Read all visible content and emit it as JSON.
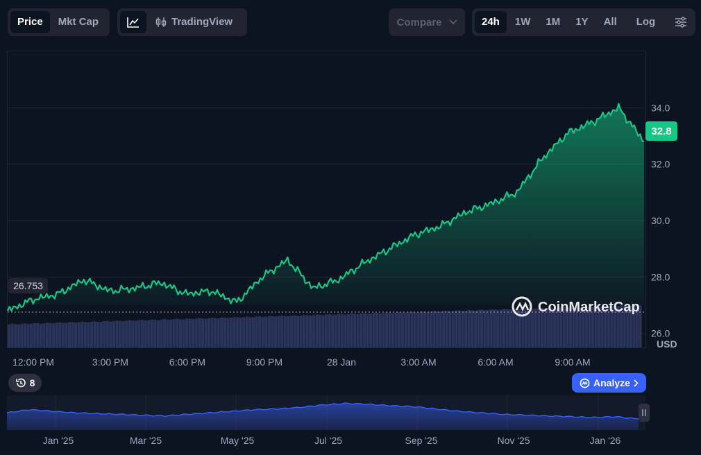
{
  "toolbar": {
    "metric_tabs": [
      "Price",
      "Mkt Cap"
    ],
    "metric_active": "Price",
    "tradingview_label": "TradingView",
    "compare_label": "Compare",
    "ranges": [
      "24h",
      "1W",
      "1M",
      "1Y",
      "All"
    ],
    "range_active": "24h",
    "log_label": "Log"
  },
  "chart_data": {
    "type": "area",
    "y_unit": "USD",
    "ylim": [
      25.5,
      36.0
    ],
    "y_ticks": [
      34.0,
      32.0,
      30.0,
      28.0,
      26.0
    ],
    "x_ticks": [
      "12:00 PM",
      "3:00 PM",
      "6:00 PM",
      "9:00 PM",
      "28 Jan",
      "3:00 AM",
      "6:00 AM",
      "9:00 AM"
    ],
    "open_price_label": "26.753",
    "open_price": 26.753,
    "current_price_label": "32.8",
    "current_price": 32.8,
    "series": [
      {
        "x": [
          0,
          1,
          2,
          3,
          4,
          5,
          6,
          7,
          8,
          9,
          10,
          11,
          12,
          13,
          14,
          15,
          16,
          17,
          18,
          19,
          20,
          21,
          22,
          23,
          24,
          25
        ],
        "values": [
          26.8,
          27.2,
          27.4,
          27.9,
          27.5,
          27.6,
          27.8,
          27.4,
          27.5,
          27.1,
          28.0,
          28.6,
          27.6,
          27.9,
          28.5,
          29.0,
          29.5,
          29.8,
          30.3,
          30.6,
          31.0,
          32.2,
          33.1,
          33.5,
          34.0,
          32.8
        ]
      }
    ],
    "volume_bars_relative": [
      0.62,
      0.64,
      0.66,
      0.68,
      0.7,
      0.72,
      0.74,
      0.76,
      0.78,
      0.8,
      0.82,
      0.84,
      0.86,
      0.88,
      0.9,
      0.92,
      0.94,
      0.96,
      0.98,
      1.0
    ],
    "watermark": "CoinMarketCap"
  },
  "navigator": {
    "x_labels": [
      "Jan '25",
      "Mar '25",
      "May '25",
      "Jul '25",
      "Sep '25",
      "Nov '25",
      "Jan '26"
    ],
    "values": [
      22,
      26,
      24,
      22,
      21,
      20,
      19,
      18,
      20,
      22,
      24,
      26,
      27,
      29,
      32,
      34,
      33,
      31,
      30,
      27,
      24,
      22,
      20,
      19,
      18,
      17,
      16,
      17,
      14
    ]
  },
  "controls": {
    "history_count": "8",
    "analyze_label": "Analyze"
  },
  "colors": {
    "line": "#16c784",
    "background": "#0d1421",
    "navigator_line": "#3861fb",
    "analyze_button": "#3861fb"
  }
}
